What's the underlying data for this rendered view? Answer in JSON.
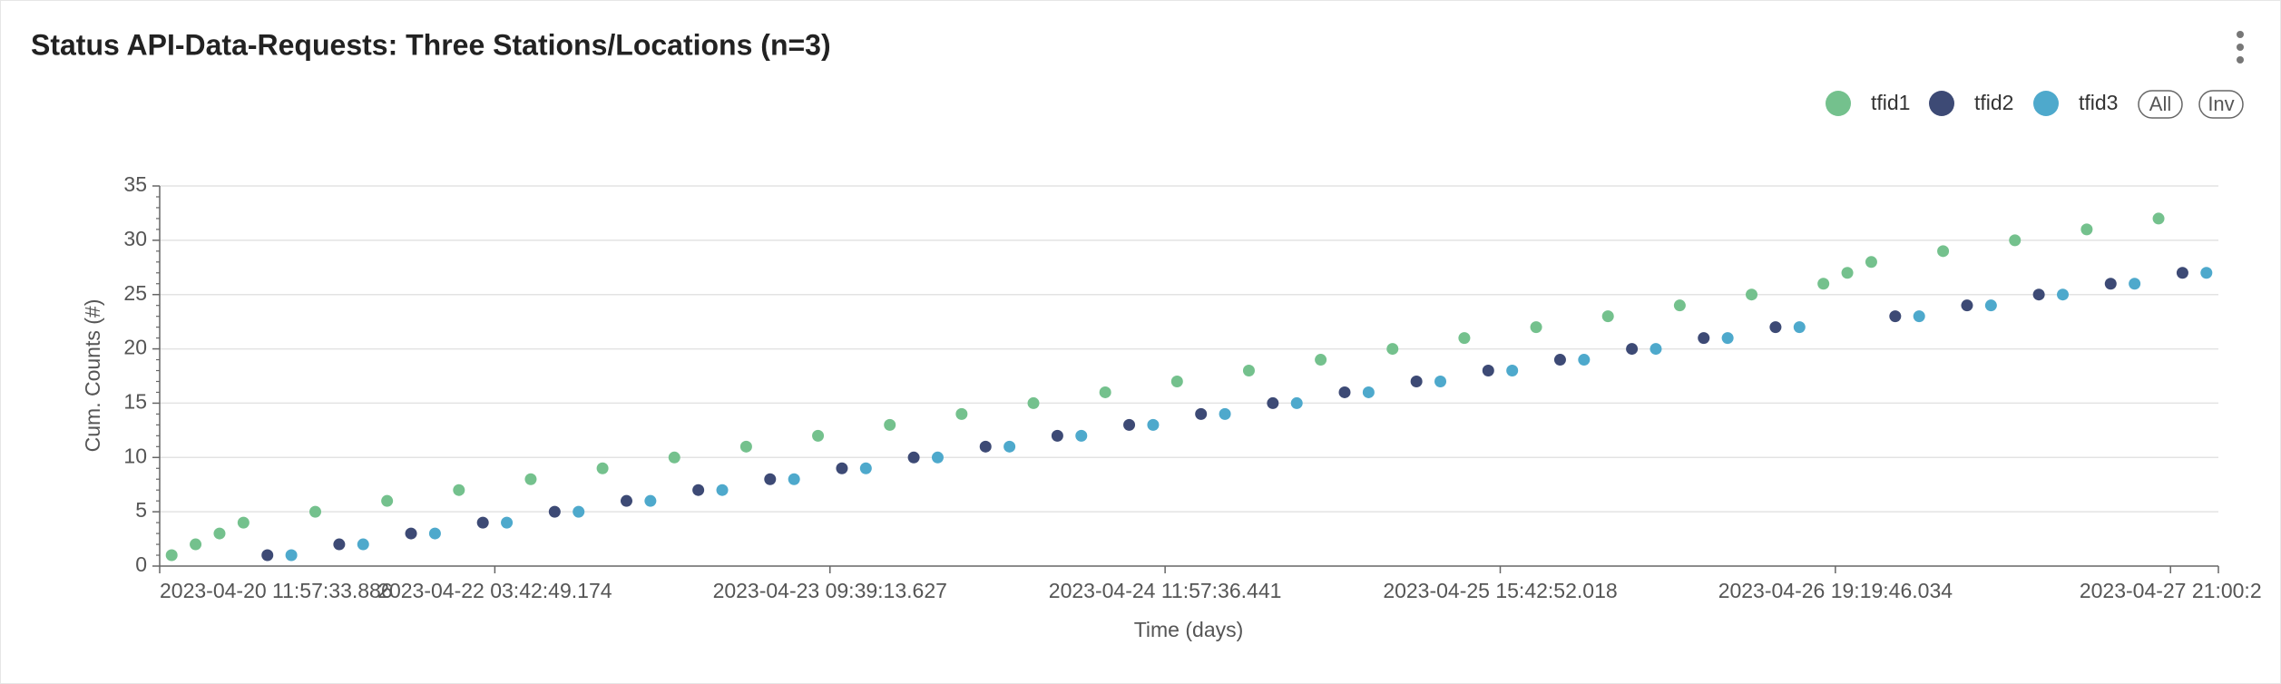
{
  "chart_data": {
    "type": "scatter",
    "title": "Status API-Data-Requests: Three Stations/Locations (n=3)",
    "x_label": "Time (days)",
    "y_label": "Cum. Counts (#)",
    "legend_buttons": [
      "All",
      "Inv"
    ],
    "legend": "top-right",
    "grid": true,
    "categories": [
      "2023-04-20 11:57:33.886",
      null,
      null,
      null,
      null,
      null,
      null,
      null,
      null,
      null,
      null,
      null,
      null,
      null,
      "2023-04-22 03:42:49.174",
      null,
      null,
      null,
      null,
      null,
      null,
      null,
      null,
      null,
      null,
      null,
      null,
      null,
      "2023-04-23 09:39:13.627",
      null,
      null,
      null,
      null,
      null,
      null,
      null,
      null,
      null,
      null,
      null,
      null,
      null,
      "2023-04-24 11:57:36.441",
      null,
      null,
      null,
      null,
      null,
      null,
      null,
      null,
      null,
      null,
      null,
      null,
      null,
      "2023-04-25 15:42:52.018",
      null,
      null,
      null,
      null,
      null,
      null,
      null,
      null,
      null,
      null,
      null,
      null,
      null,
      "2023-04-26 19:19:46.034",
      null,
      null,
      null,
      null,
      null,
      null,
      null,
      null,
      null,
      null,
      null,
      null,
      null,
      "2023-04-27 21:00:2",
      null
    ],
    "ylim": [
      0,
      35
    ],
    "yticks": [
      0,
      5,
      10,
      15,
      20,
      25,
      30,
      35
    ],
    "series": [
      {
        "name": "tfid1",
        "color": "#74c18d",
        "values": [
          1,
          2,
          3,
          4,
          null,
          null,
          5,
          null,
          null,
          6,
          null,
          null,
          7,
          null,
          null,
          8,
          null,
          null,
          9,
          null,
          null,
          10,
          null,
          null,
          11,
          null,
          null,
          12,
          null,
          null,
          13,
          null,
          null,
          14,
          null,
          null,
          15,
          null,
          null,
          16,
          null,
          null,
          17,
          null,
          null,
          18,
          null,
          null,
          19,
          null,
          null,
          20,
          null,
          null,
          21,
          null,
          null,
          22,
          null,
          null,
          23,
          null,
          null,
          24,
          null,
          null,
          25,
          null,
          null,
          26,
          27,
          28,
          null,
          null,
          29,
          null,
          null,
          30,
          null,
          null,
          31,
          null,
          null,
          32,
          null,
          null
        ]
      },
      {
        "name": "tfid2",
        "color": "#3d4a75",
        "values": [
          null,
          null,
          null,
          null,
          1,
          null,
          null,
          2,
          null,
          null,
          3,
          null,
          null,
          4,
          null,
          null,
          5,
          null,
          null,
          6,
          null,
          null,
          7,
          null,
          null,
          8,
          null,
          null,
          9,
          null,
          null,
          10,
          null,
          null,
          11,
          null,
          null,
          12,
          null,
          null,
          13,
          null,
          null,
          14,
          null,
          null,
          15,
          null,
          null,
          16,
          null,
          null,
          17,
          null,
          null,
          18,
          null,
          null,
          19,
          null,
          null,
          20,
          null,
          null,
          21,
          null,
          null,
          22,
          null,
          null,
          null,
          null,
          23,
          null,
          null,
          24,
          null,
          null,
          25,
          null,
          null,
          26,
          null,
          null,
          27,
          null
        ]
      },
      {
        "name": "tfid3",
        "color": "#4ea9cc",
        "values": [
          null,
          null,
          null,
          null,
          null,
          1,
          null,
          null,
          2,
          null,
          null,
          3,
          null,
          null,
          4,
          null,
          null,
          5,
          null,
          null,
          6,
          null,
          null,
          7,
          null,
          null,
          8,
          null,
          null,
          9,
          null,
          null,
          10,
          null,
          null,
          11,
          null,
          null,
          12,
          null,
          null,
          13,
          null,
          null,
          14,
          null,
          null,
          15,
          null,
          null,
          16,
          null,
          null,
          17,
          null,
          null,
          18,
          null,
          null,
          19,
          null,
          null,
          20,
          null,
          null,
          21,
          null,
          null,
          22,
          null,
          null,
          null,
          null,
          23,
          null,
          null,
          24,
          null,
          null,
          25,
          null,
          null,
          26,
          null,
          null,
          27
        ]
      }
    ]
  }
}
